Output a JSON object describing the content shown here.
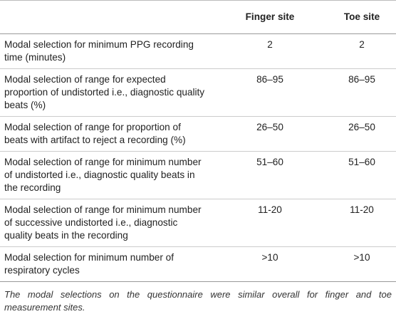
{
  "table": {
    "columns": [
      "Finger site",
      "Toe site"
    ],
    "rows": [
      [
        "Modal selection for minimum PPG recording time (minutes)",
        "2",
        "2"
      ],
      [
        "Modal selection of range for expected proportion of undistorted i.e., diagnostic quality beats (%)",
        "86–95",
        "86–95"
      ],
      [
        "Modal selection of range for proportion of beats with artifact to reject a recording (%)",
        "26–50",
        "26–50"
      ],
      [
        "Modal selection of range for minimum number of undistorted i.e., diagnostic quality beats in the recording",
        "51–60",
        "51–60"
      ],
      [
        "Modal selection of range for minimum number of successive undistorted i.e., diagnostic quality beats in the recording",
        "11-20",
        "11-20"
      ],
      [
        "Modal selection for minimum number of respiratory cycles",
        ">10",
        ">10"
      ]
    ]
  },
  "footnote": "The modal selections on the questionnaire were similar overall for finger and toe measurement sites."
}
